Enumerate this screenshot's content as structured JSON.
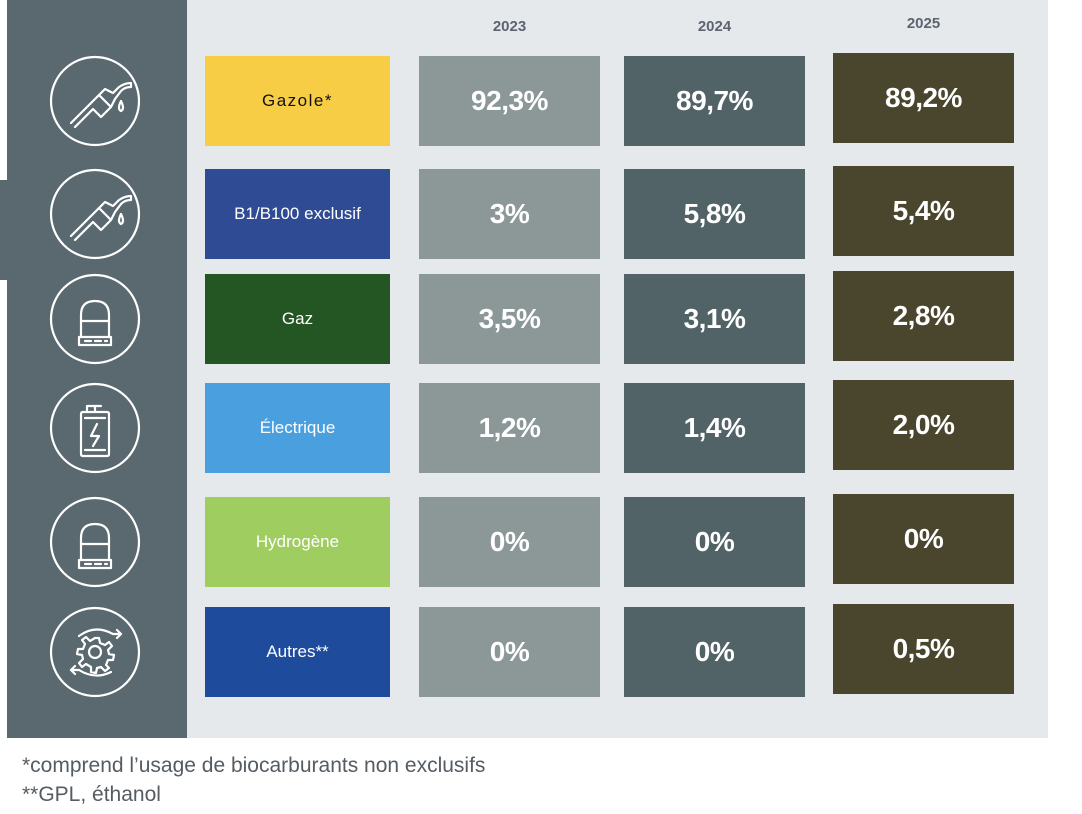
{
  "colors": {
    "sidebar": "#5a6970",
    "panel": "#e6e9ec",
    "col_2023": "#8c9898",
    "col_2024": "#526367",
    "col_2025": "#4a452d"
  },
  "chart_data": {
    "type": "table",
    "columns": [
      "2023",
      "2024",
      "2025"
    ],
    "rows": [
      {
        "label": "Gazole*",
        "icon": "fuel-pump-nozzle-icon",
        "color": "#f7cd45",
        "text_color": "#111111",
        "values": [
          "92,3%",
          "89,7%",
          "89,2%"
        ]
      },
      {
        "label": "B1/B100 exclusif",
        "icon": "fuel-pump-nozzle-icon",
        "color": "#2e4b94",
        "text_color": "#ffffff",
        "values": [
          "3%",
          "5,8%",
          "5,4%"
        ]
      },
      {
        "label": "Gaz",
        "icon": "gas-tank-icon",
        "color": "#235622",
        "text_color": "#ffffff",
        "values": [
          "3,5%",
          "3,1%",
          "2,8%"
        ]
      },
      {
        "label": "Électrique",
        "icon": "battery-charging-icon",
        "color": "#4a9fdf",
        "text_color": "#ffffff",
        "values": [
          "1,2%",
          "1,4%",
          "2,0%"
        ]
      },
      {
        "label": "Hydrogène",
        "icon": "gas-tank-icon",
        "color": "#9fcd5f",
        "text_color": "#ffffff",
        "values": [
          "0%",
          "0%",
          "0%"
        ]
      },
      {
        "label": "Autres**",
        "icon": "gear-cycle-icon",
        "color": "#1e4b9c",
        "text_color": "#ffffff",
        "values": [
          "0%",
          "0%",
          "0,5%"
        ]
      }
    ]
  },
  "footnotes": [
    "*comprend l’usage de biocarburants non exclusifs",
    "**GPL, éthanol"
  ]
}
